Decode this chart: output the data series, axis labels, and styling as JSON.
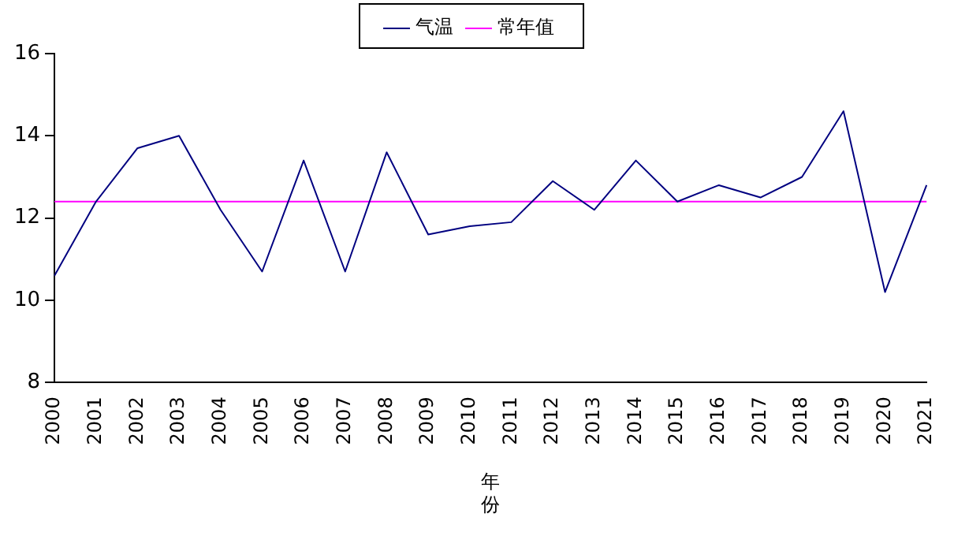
{
  "chart_data": {
    "type": "line",
    "xlabel": "年份",
    "categories": [
      "2000",
      "2001",
      "2002",
      "2003",
      "2004",
      "2005",
      "2006",
      "2007",
      "2008",
      "2009",
      "2010",
      "2011",
      "2012",
      "2013",
      "2014",
      "2015",
      "2016",
      "2017",
      "2018",
      "2019",
      "2020",
      "2021"
    ],
    "series": [
      {
        "name": "气温",
        "color": "#000080",
        "values": [
          10.6,
          12.4,
          13.7,
          14.0,
          12.2,
          10.7,
          13.4,
          10.7,
          13.6,
          11.6,
          11.8,
          11.9,
          12.9,
          12.2,
          13.4,
          12.4,
          12.8,
          12.5,
          13.0,
          14.6,
          10.2,
          12.8
        ]
      },
      {
        "name": "常年值",
        "color": "#ff00ff",
        "values": [
          12.4,
          12.4,
          12.4,
          12.4,
          12.4,
          12.4,
          12.4,
          12.4,
          12.4,
          12.4,
          12.4,
          12.4,
          12.4,
          12.4,
          12.4,
          12.4,
          12.4,
          12.4,
          12.4,
          12.4,
          12.4,
          12.4
        ]
      }
    ],
    "ylim": [
      8,
      16
    ],
    "yticks": [
      8,
      10,
      12,
      14,
      16
    ],
    "grid": false,
    "legend": "top",
    "marker": "none",
    "line_style": "solid"
  }
}
